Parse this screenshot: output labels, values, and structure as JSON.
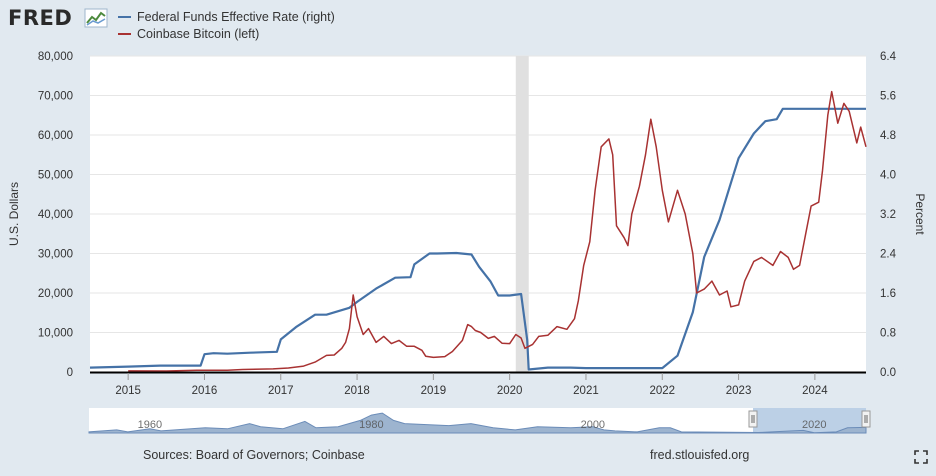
{
  "brand": {
    "name": "FRED"
  },
  "legend": [
    {
      "label": "Federal Funds Effective Rate (right)",
      "color": "#4572a7"
    },
    {
      "label": "Coinbase Bitcoin (left)",
      "color": "#a83232"
    }
  ],
  "footer": {
    "sources": "Sources: Board of Governors; Coinbase",
    "site": "fred.stlouisfed.org"
  },
  "icons": {
    "fullscreen": "fullscreen-icon",
    "logo": "fred-chart-logo-icon"
  },
  "chart_data": {
    "type": "line",
    "ylabel_left": "U.S. Dollars",
    "ylabel_right": "Percent",
    "xlim": [
      2014.5,
      2024.67
    ],
    "ylim_left": [
      0,
      80000
    ],
    "ylim_right": [
      0,
      6.4
    ],
    "y_ticks_left": [
      "0",
      "10,000",
      "20,000",
      "30,000",
      "40,000",
      "50,000",
      "60,000",
      "70,000",
      "80,000"
    ],
    "y_ticks_right": [
      "0.0",
      "0.8",
      "1.6",
      "2.4",
      "3.2",
      "4.0",
      "4.8",
      "5.6",
      "6.4"
    ],
    "x_ticks": [
      "2015",
      "2016",
      "2017",
      "2018",
      "2019",
      "2020",
      "2021",
      "2022",
      "2023",
      "2024"
    ],
    "recession": [
      2020.08,
      2020.25
    ],
    "series": [
      {
        "name": "Federal Funds Effective Rate (right)",
        "axis": "right",
        "points": [
          [
            2014.5,
            0.09
          ],
          [
            2015.0,
            0.11
          ],
          [
            2015.42,
            0.13
          ],
          [
            2015.95,
            0.13
          ],
          [
            2016.0,
            0.36
          ],
          [
            2016.12,
            0.38
          ],
          [
            2016.3,
            0.37
          ],
          [
            2016.6,
            0.39
          ],
          [
            2016.95,
            0.41
          ],
          [
            2017.0,
            0.66
          ],
          [
            2017.2,
            0.91
          ],
          [
            2017.45,
            1.16
          ],
          [
            2017.6,
            1.16
          ],
          [
            2017.9,
            1.3
          ],
          [
            2018.0,
            1.42
          ],
          [
            2018.25,
            1.69
          ],
          [
            2018.5,
            1.91
          ],
          [
            2018.7,
            1.92
          ],
          [
            2018.75,
            2.18
          ],
          [
            2018.95,
            2.4
          ],
          [
            2019.05,
            2.4
          ],
          [
            2019.3,
            2.41
          ],
          [
            2019.5,
            2.38
          ],
          [
            2019.6,
            2.13
          ],
          [
            2019.75,
            1.83
          ],
          [
            2019.85,
            1.55
          ],
          [
            2020.0,
            1.55
          ],
          [
            2020.15,
            1.58
          ],
          [
            2020.23,
            0.65
          ],
          [
            2020.25,
            0.05
          ],
          [
            2020.5,
            0.09
          ],
          [
            2020.8,
            0.09
          ],
          [
            2021.0,
            0.08
          ],
          [
            2021.5,
            0.08
          ],
          [
            2022.0,
            0.08
          ],
          [
            2022.2,
            0.33
          ],
          [
            2022.4,
            1.21
          ],
          [
            2022.55,
            2.33
          ],
          [
            2022.75,
            3.08
          ],
          [
            2022.9,
            3.83
          ],
          [
            2023.0,
            4.33
          ],
          [
            2023.2,
            4.83
          ],
          [
            2023.35,
            5.08
          ],
          [
            2023.5,
            5.12
          ],
          [
            2023.58,
            5.33
          ],
          [
            2024.6,
            5.33
          ],
          [
            2024.67,
            5.33
          ]
        ]
      },
      {
        "name": "Coinbase Bitcoin (left)",
        "axis": "left",
        "points": [
          [
            2015.0,
            280
          ],
          [
            2015.5,
            260
          ],
          [
            2015.9,
            420
          ],
          [
            2016.3,
            430
          ],
          [
            2016.5,
            640
          ],
          [
            2016.9,
            790
          ],
          [
            2017.1,
            1020
          ],
          [
            2017.3,
            1500
          ],
          [
            2017.45,
            2500
          ],
          [
            2017.6,
            4200
          ],
          [
            2017.7,
            4300
          ],
          [
            2017.8,
            6000
          ],
          [
            2017.85,
            7500
          ],
          [
            2017.9,
            11000
          ],
          [
            2017.95,
            19500
          ],
          [
            2018.0,
            14000
          ],
          [
            2018.08,
            9500
          ],
          [
            2018.15,
            11000
          ],
          [
            2018.25,
            7500
          ],
          [
            2018.35,
            9000
          ],
          [
            2018.45,
            7200
          ],
          [
            2018.55,
            8000
          ],
          [
            2018.65,
            6500
          ],
          [
            2018.75,
            6500
          ],
          [
            2018.85,
            5500
          ],
          [
            2018.9,
            4000
          ],
          [
            2019.0,
            3700
          ],
          [
            2019.15,
            3900
          ],
          [
            2019.25,
            5200
          ],
          [
            2019.38,
            8000
          ],
          [
            2019.45,
            12000
          ],
          [
            2019.5,
            11500
          ],
          [
            2019.55,
            10500
          ],
          [
            2019.62,
            10000
          ],
          [
            2019.72,
            8500
          ],
          [
            2019.8,
            9000
          ],
          [
            2019.9,
            7300
          ],
          [
            2020.0,
            7200
          ],
          [
            2020.08,
            9500
          ],
          [
            2020.15,
            8600
          ],
          [
            2020.2,
            6000
          ],
          [
            2020.3,
            7000
          ],
          [
            2020.38,
            9000
          ],
          [
            2020.5,
            9300
          ],
          [
            2020.62,
            11500
          ],
          [
            2020.75,
            10800
          ],
          [
            2020.85,
            13500
          ],
          [
            2020.9,
            18000
          ],
          [
            2020.97,
            27000
          ],
          [
            2021.05,
            33000
          ],
          [
            2021.12,
            46000
          ],
          [
            2021.2,
            57000
          ],
          [
            2021.3,
            59000
          ],
          [
            2021.35,
            55000
          ],
          [
            2021.4,
            37000
          ],
          [
            2021.5,
            34000
          ],
          [
            2021.55,
            32000
          ],
          [
            2021.6,
            40000
          ],
          [
            2021.7,
            47000
          ],
          [
            2021.78,
            55000
          ],
          [
            2021.85,
            64000
          ],
          [
            2021.92,
            57000
          ],
          [
            2022.0,
            46000
          ],
          [
            2022.08,
            38000
          ],
          [
            2022.2,
            46000
          ],
          [
            2022.3,
            40000
          ],
          [
            2022.4,
            30000
          ],
          [
            2022.45,
            20000
          ],
          [
            2022.55,
            21000
          ],
          [
            2022.65,
            23000
          ],
          [
            2022.75,
            19500
          ],
          [
            2022.85,
            20500
          ],
          [
            2022.9,
            16500
          ],
          [
            2023.0,
            17000
          ],
          [
            2023.08,
            23000
          ],
          [
            2023.2,
            28000
          ],
          [
            2023.3,
            29000
          ],
          [
            2023.45,
            27000
          ],
          [
            2023.55,
            30500
          ],
          [
            2023.65,
            29000
          ],
          [
            2023.72,
            26000
          ],
          [
            2023.8,
            27000
          ],
          [
            2023.88,
            35000
          ],
          [
            2023.95,
            42000
          ],
          [
            2024.05,
            43000
          ],
          [
            2024.1,
            51000
          ],
          [
            2024.17,
            65000
          ],
          [
            2024.22,
            71000
          ],
          [
            2024.3,
            63000
          ],
          [
            2024.38,
            68000
          ],
          [
            2024.45,
            66000
          ],
          [
            2024.55,
            58000
          ],
          [
            2024.6,
            62000
          ],
          [
            2024.67,
            57000
          ]
        ]
      }
    ],
    "navigator": {
      "tick_labels": [
        "1960",
        "1980",
        "2000",
        "2020"
      ]
    }
  }
}
